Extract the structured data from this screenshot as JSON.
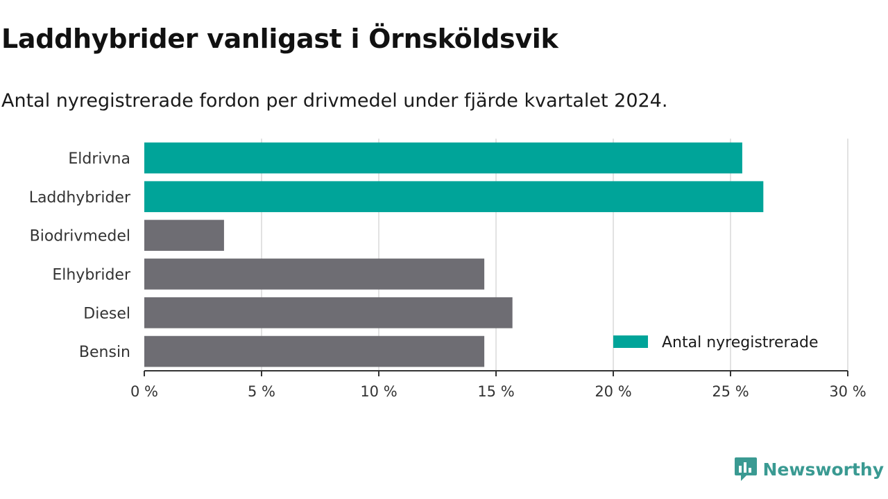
{
  "title": "Laddhybrider vanligast i Örnsköldsvik",
  "subtitle": "Antal nyregistrerade fordon per drivmedel under fjärde kvartalet 2024.",
  "brand": "Newsworthy",
  "colors": {
    "highlight": "#00a499",
    "default": "#6e6d73",
    "grid": "#e2e2e2",
    "axis": "#333333"
  },
  "chart_data": {
    "type": "bar",
    "orientation": "horizontal",
    "categories": [
      "Eldrivna",
      "Laddhybrider",
      "Biodrivmedel",
      "Elhybrider",
      "Diesel",
      "Bensin"
    ],
    "values": [
      25.5,
      26.4,
      3.4,
      14.5,
      15.7,
      14.5
    ],
    "highlighted": [
      true,
      true,
      false,
      false,
      false,
      false
    ],
    "xlim": [
      0,
      30
    ],
    "xticks": [
      0,
      5,
      10,
      15,
      20,
      25,
      30
    ],
    "tick_labels": [
      "0 %",
      "5 %",
      "10 %",
      "15 %",
      "20 %",
      "25 %",
      "30 %"
    ],
    "legend": {
      "label": "Antal nyregistrerade",
      "position": "bottom-right"
    },
    "grid": true
  }
}
